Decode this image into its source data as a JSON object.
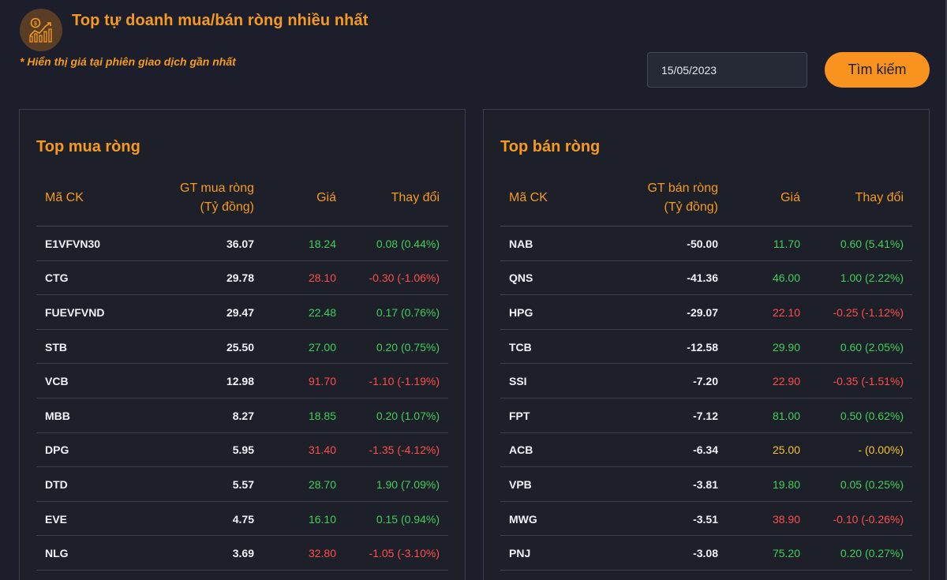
{
  "header": {
    "title": "Top tự doanh mua/bán ròng nhiều nhất",
    "note": "* Hiển thị giá tại phiên giao dịch gần nhất",
    "logo_icon": "chart-coin-icon"
  },
  "search": {
    "date_value": "15/05/2023",
    "button_label": "Tìm kiếm"
  },
  "colors": {
    "accent": "#f59a1d",
    "up": "#3fce5a",
    "down": "#ff4d4d",
    "ref": "#f5c332",
    "background": "#1c1f2b"
  },
  "buy_table": {
    "title": "Top mua ròng",
    "headers": {
      "code": "Mã CK",
      "value_line1": "GT mua ròng",
      "value_line2": "(Tỷ đồng)",
      "price": "Giá",
      "change": "Thay đổi"
    },
    "rows": [
      {
        "code": "E1VFVN30",
        "value": "36.07",
        "price": "18.24",
        "change": "0.08 (0.44%)",
        "trend": "up"
      },
      {
        "code": "CTG",
        "value": "29.78",
        "price": "28.10",
        "change": "-0.30 (-1.06%)",
        "trend": "down"
      },
      {
        "code": "FUEVFVND",
        "value": "29.47",
        "price": "22.48",
        "change": "0.17 (0.76%)",
        "trend": "up"
      },
      {
        "code": "STB",
        "value": "25.50",
        "price": "27.00",
        "change": "0.20 (0.75%)",
        "trend": "up"
      },
      {
        "code": "VCB",
        "value": "12.98",
        "price": "91.70",
        "change": "-1.10 (-1.19%)",
        "trend": "down"
      },
      {
        "code": "MBB",
        "value": "8.27",
        "price": "18.85",
        "change": "0.20 (1.07%)",
        "trend": "up"
      },
      {
        "code": "DPG",
        "value": "5.95",
        "price": "31.40",
        "change": "-1.35 (-4.12%)",
        "trend": "down"
      },
      {
        "code": "DTD",
        "value": "5.57",
        "price": "28.70",
        "change": "1.90 (7.09%)",
        "trend": "up"
      },
      {
        "code": "EVE",
        "value": "4.75",
        "price": "16.10",
        "change": "0.15 (0.94%)",
        "trend": "up"
      },
      {
        "code": "NLG",
        "value": "3.69",
        "price": "32.80",
        "change": "-1.05 (-3.10%)",
        "trend": "down"
      }
    ]
  },
  "sell_table": {
    "title": "Top bán ròng",
    "headers": {
      "code": "Mã CK",
      "value_line1": "GT bán ròng",
      "value_line2": "(Tỷ đồng)",
      "price": "Giá",
      "change": "Thay đổi"
    },
    "rows": [
      {
        "code": "NAB",
        "value": "-50.00",
        "price": "11.70",
        "change": "0.60 (5.41%)",
        "trend": "up"
      },
      {
        "code": "QNS",
        "value": "-41.36",
        "price": "46.00",
        "change": "1.00 (2.22%)",
        "trend": "up"
      },
      {
        "code": "HPG",
        "value": "-29.07",
        "price": "22.10",
        "change": "-0.25 (-1.12%)",
        "trend": "down"
      },
      {
        "code": "TCB",
        "value": "-12.58",
        "price": "29.90",
        "change": "0.60 (2.05%)",
        "trend": "up"
      },
      {
        "code": "SSI",
        "value": "-7.20",
        "price": "22.90",
        "change": "-0.35 (-1.51%)",
        "trend": "down"
      },
      {
        "code": "FPT",
        "value": "-7.12",
        "price": "81.00",
        "change": "0.50 (0.62%)",
        "trend": "up"
      },
      {
        "code": "ACB",
        "value": "-6.34",
        "price": "25.00",
        "change": "- (0.00%)",
        "trend": "ref"
      },
      {
        "code": "VPB",
        "value": "-3.81",
        "price": "19.80",
        "change": "0.05 (0.25%)",
        "trend": "up"
      },
      {
        "code": "MWG",
        "value": "-3.51",
        "price": "38.90",
        "change": "-0.10 (-0.26%)",
        "trend": "down"
      },
      {
        "code": "PNJ",
        "value": "-3.08",
        "price": "75.20",
        "change": "0.20 (0.27%)",
        "trend": "up"
      }
    ]
  }
}
